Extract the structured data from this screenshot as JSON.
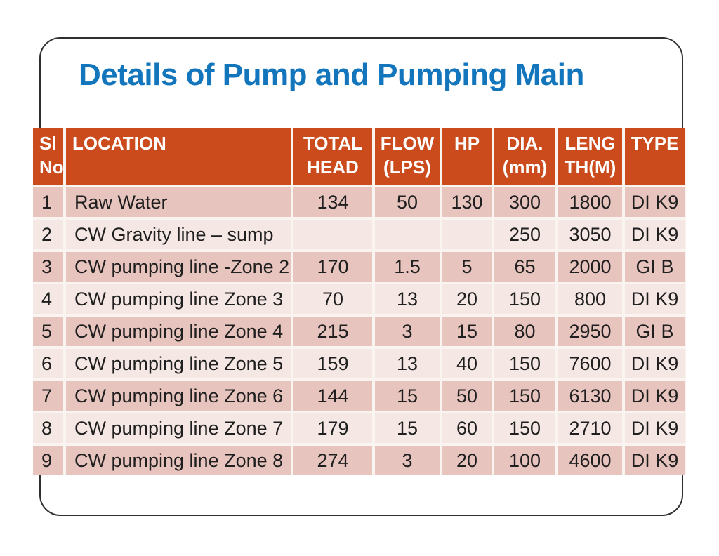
{
  "slide": {
    "title": "Details of Pump and Pumping Main"
  },
  "theme": {
    "title_color": "#1375BC",
    "header_bg": "#CB4B1D",
    "header_text": "#FFFFFF",
    "row_odd_bg": "#E8C4BE",
    "row_even_bg": "#F5E7E4",
    "gap_bg": "#FAF4F1",
    "body_text": "#1F1F1F",
    "frame_border": "#2F2F2F"
  },
  "table": {
    "columns": [
      {
        "key": "sl_no",
        "label": "Sl\nNo",
        "align": "left"
      },
      {
        "key": "location",
        "label": "LOCATION",
        "align": "left"
      },
      {
        "key": "total_head",
        "label": "TOTAL\nHEAD",
        "align": "center"
      },
      {
        "key": "flow_lps",
        "label": "FLOW\n(LPS)",
        "align": "center"
      },
      {
        "key": "hp",
        "label": "HP",
        "align": "center"
      },
      {
        "key": "dia_mm",
        "label": "DIA.\n(mm)",
        "align": "center"
      },
      {
        "key": "length_m",
        "label": "LENG\nTH(M)",
        "align": "center"
      },
      {
        "key": "type",
        "label": "TYPE",
        "align": "center"
      }
    ],
    "rows": [
      [
        "1",
        "Raw Water",
        "134",
        "50",
        "130",
        "300",
        "1800",
        "DI K9"
      ],
      [
        "2",
        "CW Gravity line – sump",
        "",
        "",
        "",
        "250",
        "3050",
        "DI K9"
      ],
      [
        "3",
        "CW pumping line -Zone 2",
        "170",
        "1.5",
        "5",
        "65",
        "2000",
        "GI B"
      ],
      [
        "4",
        "CW pumping line Zone 3",
        "70",
        "13",
        "20",
        "150",
        "800",
        "DI K9"
      ],
      [
        "5",
        "CW pumping line Zone 4",
        "215",
        "3",
        "15",
        "80",
        "2950",
        "GI B"
      ],
      [
        "6",
        "CW pumping line Zone 5",
        "159",
        "13",
        "40",
        "150",
        "7600",
        "DI K9"
      ],
      [
        "7",
        "CW pumping line Zone 6",
        "144",
        "15",
        "50",
        "150",
        "6130",
        "DI K9"
      ],
      [
        "8",
        "CW pumping line Zone 7",
        "179",
        "15",
        "60",
        "150",
        "2710",
        "DI K9"
      ],
      [
        "9",
        "CW pumping line Zone 8",
        "274",
        "3",
        "20",
        "100",
        "4600",
        "DI K9"
      ]
    ]
  }
}
